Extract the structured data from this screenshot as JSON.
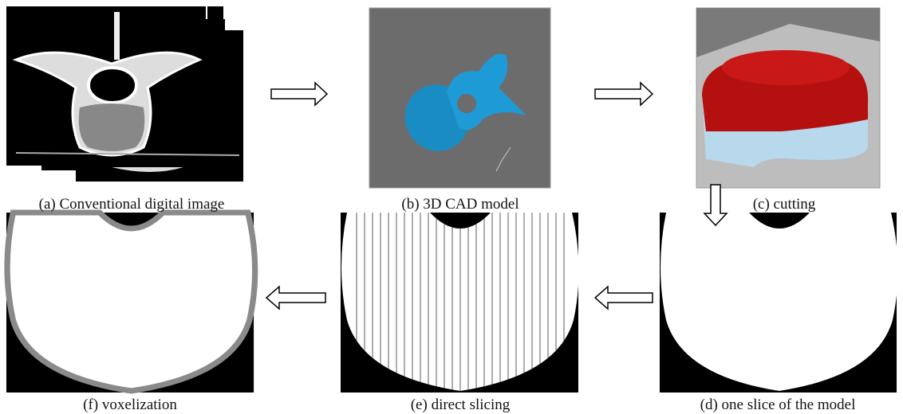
{
  "panels": [
    {
      "caption": "(a) Conventional digital image"
    },
    {
      "caption": "(b) 3D CAD model"
    },
    {
      "caption": "(c) cutting"
    },
    {
      "caption": "(d) one slice of the model"
    },
    {
      "caption": "(e) direct slicing"
    },
    {
      "caption": "(f) voxelization"
    }
  ]
}
